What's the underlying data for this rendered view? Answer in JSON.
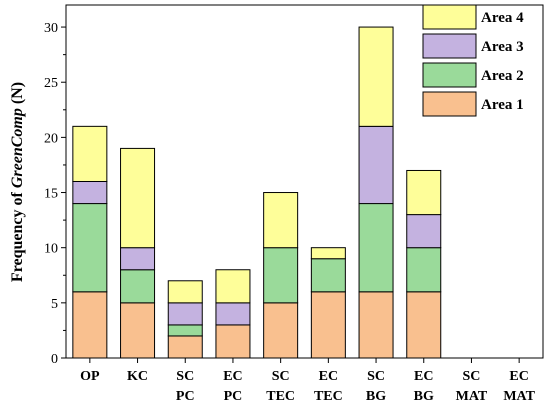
{
  "chart_data": {
    "type": "bar",
    "stacked": true,
    "ylabel_prefix": "Frequency of ",
    "ylabel_italic": "GreenComp",
    "ylabel_suffix": " (N)",
    "ylim": [
      0,
      32
    ],
    "yticks": [
      0,
      5,
      10,
      15,
      20,
      25,
      30
    ],
    "categories": [
      [
        "OP"
      ],
      [
        "KC"
      ],
      [
        "SC",
        "PC"
      ],
      [
        "EC",
        "PC"
      ],
      [
        "SC",
        "TEC"
      ],
      [
        "EC",
        "TEC"
      ],
      [
        "SC",
        "BG"
      ],
      [
        "EC",
        "BG"
      ],
      [
        "SC",
        "MAT"
      ],
      [
        "EC",
        "MAT"
      ]
    ],
    "series": [
      {
        "name": "Area 1",
        "color": "#f9c08f",
        "values": [
          6,
          5,
          2,
          3,
          5,
          6,
          6,
          6,
          0,
          0
        ]
      },
      {
        "name": "Area 2",
        "color": "#9ada9a",
        "values": [
          8,
          3,
          1,
          0,
          5,
          3,
          8,
          4,
          0,
          0
        ]
      },
      {
        "name": "Area 3",
        "color": "#c4b2e0",
        "values": [
          2,
          2,
          2,
          2,
          0,
          0,
          7,
          3,
          0,
          0
        ]
      },
      {
        "name": "Area 4",
        "color": "#fefe99",
        "values": [
          5,
          9,
          2,
          3,
          5,
          1,
          9,
          4,
          0,
          0
        ]
      }
    ],
    "legend_position": "top-right",
    "grid": false
  }
}
